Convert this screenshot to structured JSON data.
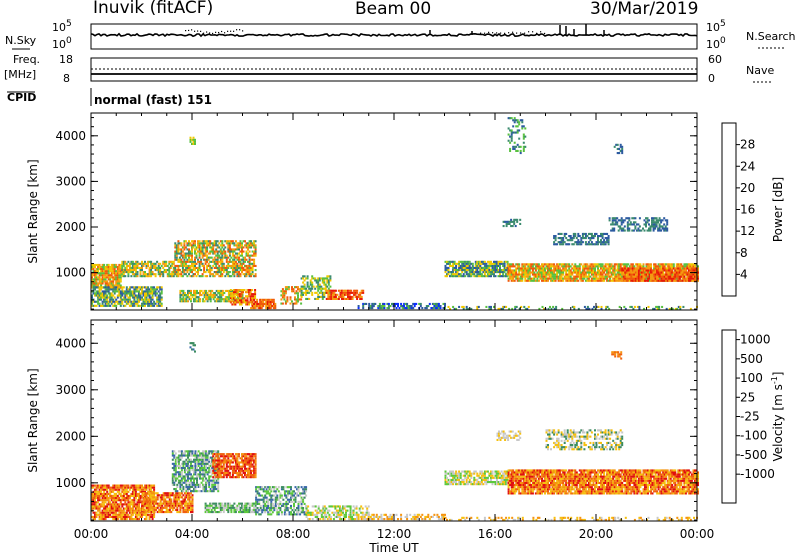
{
  "header": {
    "station": "Inuvik (fitACF)",
    "beam": "Beam 00",
    "date": "30/Mar/2019"
  },
  "status": {
    "nsky_label": "N.Sky",
    "nsearch_label": "N.Search",
    "left_ticks": [
      "10^5",
      "10^0"
    ],
    "right_ticks": [
      "10^5",
      "10^0"
    ],
    "freq_label": "Freq.",
    "freq_unit": "[MHz]",
    "freq_ticks": [
      "18",
      "8"
    ],
    "nave_label": "Nave",
    "nave_ticks": [
      "60",
      "0"
    ],
    "cpid_label": "CPID",
    "cpid_text": "normal (fast) 151"
  },
  "chart_data": [
    {
      "type": "heatmap",
      "panel": "power",
      "ylabel": "Slant Range [km]",
      "x_range_hours": [
        0,
        24
      ],
      "ylim": [
        180,
        4500
      ],
      "yticks": [
        1000,
        2000,
        3000,
        4000
      ],
      "colorbar": {
        "label": "Power [dB]",
        "ticks": [
          "4",
          "8",
          "12",
          "16",
          "20",
          "24",
          "28"
        ],
        "colors": [
          "#0b2dff",
          "#2c5aa0",
          "#3a8a6e",
          "#58c040",
          "#f0c800",
          "#f59a10",
          "#f05a0a",
          "#e81808"
        ]
      }
    },
    {
      "type": "heatmap",
      "panel": "velocity",
      "ylabel": "Slant Range [km]",
      "xlabel": "Time UT",
      "x_range_hours": [
        0,
        24
      ],
      "ylim": [
        180,
        4500
      ],
      "yticks": [
        1000,
        2000,
        3000,
        4000
      ],
      "xticks": [
        "00:00",
        "04:00",
        "08:00",
        "12:00",
        "16:00",
        "20:00",
        "00:00"
      ],
      "colorbar": {
        "label": "Velocity [m s^-1]",
        "ticks": [
          "1000",
          "500",
          "100",
          "25",
          "-25",
          "-100",
          "-500",
          "-1000"
        ],
        "colors": [
          "#2030d0",
          "#3868a8",
          "#3c8c60",
          "#5cc83c",
          "#c8c8c8",
          "#f5c010",
          "#f59410",
          "#f06010",
          "#e01010"
        ]
      }
    }
  ]
}
